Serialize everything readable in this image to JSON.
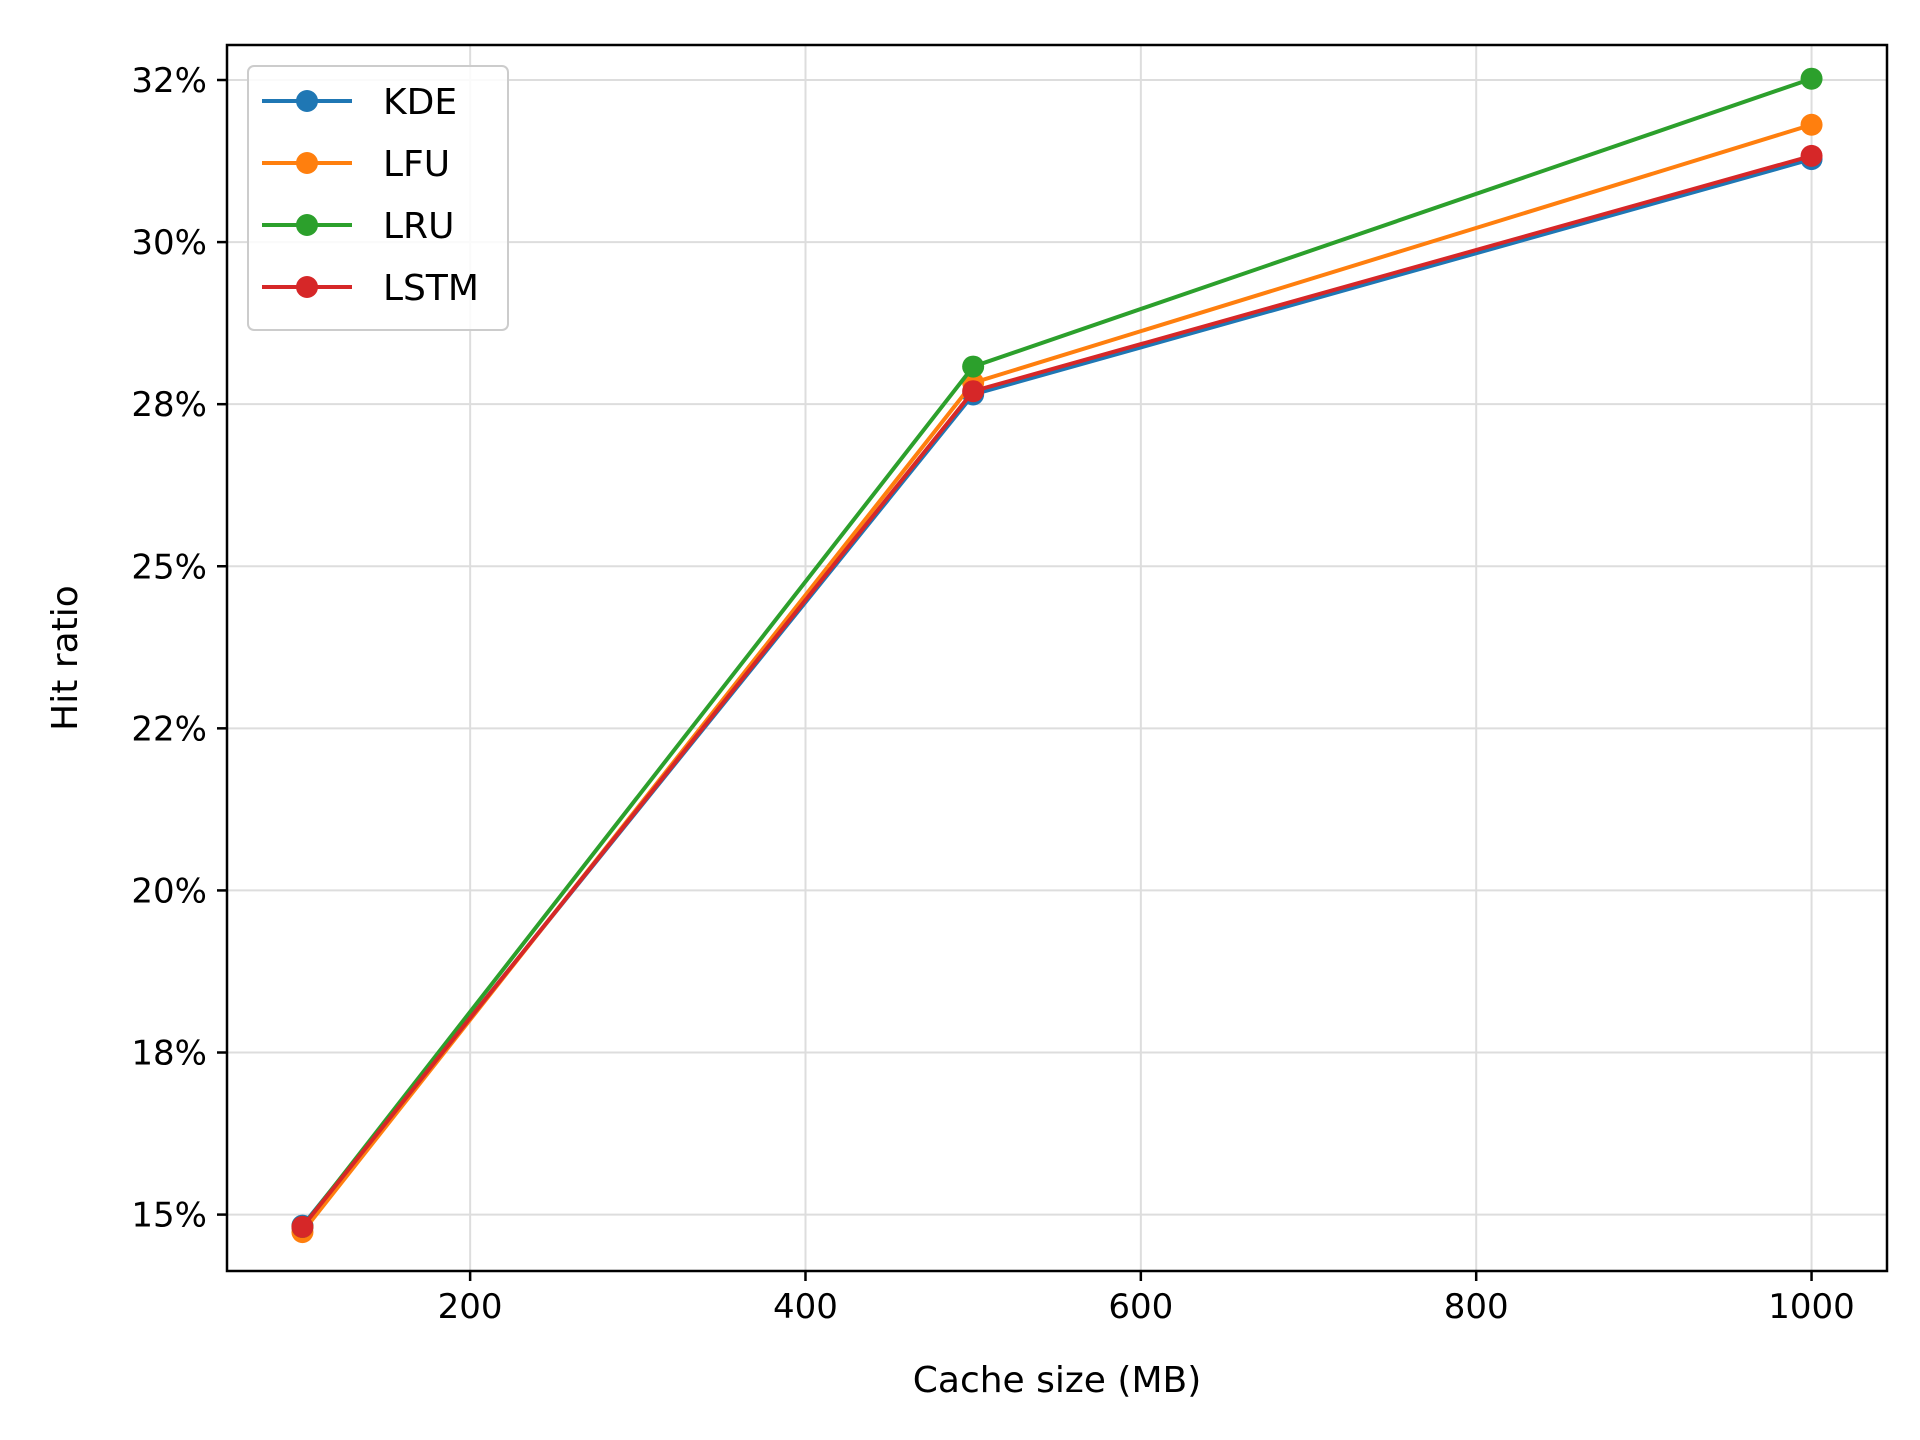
{
  "chart_data": {
    "type": "line",
    "title": "",
    "xlabel": "Cache size (MB)",
    "ylabel": "Hit ratio",
    "x": [
      100,
      500,
      1000
    ],
    "xlim": [
      55,
      1045
    ],
    "ylim": [
      0.1413,
      0.3304
    ],
    "xticks": [
      200,
      400,
      600,
      800,
      1000
    ],
    "xtick_labels": [
      "200",
      "400",
      "600",
      "800",
      "1000"
    ],
    "yticks": [
      0.15,
      0.175,
      0.2,
      0.225,
      0.25,
      0.275,
      0.3,
      0.325
    ],
    "ytick_labels": [
      "15%",
      "18%",
      "20%",
      "22%",
      "25%",
      "28%",
      "30%",
      "32%"
    ],
    "grid": true,
    "legend_position": "upper-left",
    "series": [
      {
        "name": "KDE",
        "color": "#1f77b4",
        "values": [
          0.1483,
          0.2765,
          0.3128
        ]
      },
      {
        "name": "LFU",
        "color": "#ff7f0e",
        "values": [
          0.1473,
          0.2783,
          0.3181
        ]
      },
      {
        "name": "LRU",
        "color": "#2ca02c",
        "values": [
          0.1481,
          0.2808,
          0.3252
        ]
      },
      {
        "name": "LSTM",
        "color": "#d62728",
        "values": [
          0.1481,
          0.277,
          0.3133
        ]
      }
    ]
  }
}
